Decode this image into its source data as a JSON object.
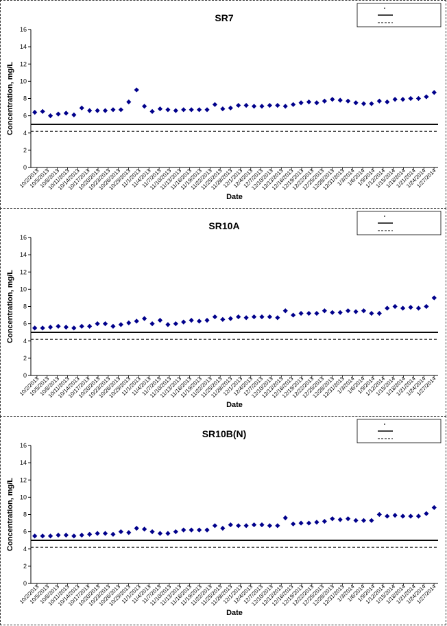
{
  "chart_data": [
    {
      "type": "scatter",
      "title": "SR7",
      "xlabel": "Date",
      "ylabel": "Concentration, mg/L",
      "ylim": [
        0,
        16
      ],
      "yticks": [
        0,
        2,
        4,
        6,
        8,
        10,
        12,
        14,
        16
      ],
      "x_tick_labels": [
        "10/2/2013",
        "10/5/2013",
        "10/8/2013",
        "10/11/2013",
        "10/14/2013",
        "10/17/2013",
        "10/20/2013",
        "10/23/2013",
        "10/26/2013",
        "10/29/2013",
        "11/1/2013",
        "11/4/2013",
        "11/7/2013",
        "11/10/2013",
        "11/13/2013",
        "11/16/2013",
        "11/19/2013",
        "11/22/2013",
        "11/25/2013",
        "11/28/2013",
        "12/1/2013",
        "12/4/2013",
        "12/7/2013",
        "12/10/2013",
        "12/13/2013",
        "12/16/2013",
        "12/19/2013",
        "12/22/2013",
        "12/25/2013",
        "12/28/2013",
        "12/31/2013",
        "1/3/2014",
        "1/6/2014",
        "1/9/2014",
        "1/12/2014",
        "1/15/2014",
        "1/18/2014",
        "1/21/2014",
        "1/24/2014",
        "1/27/2014"
      ],
      "series": [
        {
          "marker": "diamond",
          "color": "#00008b",
          "values": [
            6.4,
            6.5,
            6.0,
            6.2,
            6.3,
            6.1,
            6.9,
            6.6,
            6.6,
            6.6,
            6.7,
            6.7,
            7.6,
            9.0,
            7.1,
            6.5,
            6.8,
            6.7,
            6.6,
            6.7,
            6.7,
            6.7,
            6.7,
            7.3,
            6.8,
            6.9,
            7.2,
            7.2,
            7.1,
            7.1,
            7.2,
            7.2,
            7.1,
            7.3,
            7.5,
            7.6,
            7.5,
            7.7,
            7.9,
            7.8,
            7.7,
            7.5,
            7.4,
            7.4,
            7.7,
            7.6,
            7.9,
            7.9,
            8.0,
            8.0,
            8.2,
            8.7
          ]
        },
        {
          "line_style": "solid",
          "constant": 5.0
        },
        {
          "line_style": "dashed",
          "constant": 4.2
        }
      ]
    },
    {
      "type": "scatter",
      "title": "SR10A",
      "xlabel": "Date",
      "ylabel": "Concentration, mg/L",
      "ylim": [
        0,
        16
      ],
      "yticks": [
        0,
        2,
        4,
        6,
        8,
        10,
        12,
        14,
        16
      ],
      "x_tick_labels": [
        "10/2/2013",
        "10/5/2013",
        "10/8/2013",
        "10/11/2013",
        "10/14/2013",
        "10/17/2013",
        "10/20/2013",
        "10/23/2013",
        "10/26/2013",
        "10/29/2013",
        "11/1/2013",
        "11/4/2013",
        "11/7/2013",
        "11/10/2013",
        "11/13/2013",
        "11/16/2013",
        "11/19/2013",
        "11/22/2013",
        "11/25/2013",
        "11/28/2013",
        "12/1/2013",
        "12/4/2013",
        "12/7/2013",
        "12/10/2013",
        "12/13/2013",
        "12/16/2013",
        "12/19/2013",
        "12/22/2013",
        "12/25/2013",
        "12/28/2013",
        "12/31/2013",
        "1/3/2014",
        "1/6/2014",
        "1/9/2014",
        "1/12/2014",
        "1/15/2014",
        "1/18/2014",
        "1/21/2014",
        "1/24/2014",
        "1/27/2014"
      ],
      "series": [
        {
          "marker": "diamond",
          "color": "#00008b",
          "values": [
            5.5,
            5.5,
            5.6,
            5.7,
            5.6,
            5.5,
            5.7,
            5.7,
            6.0,
            6.0,
            5.7,
            5.9,
            6.1,
            6.3,
            6.6,
            6.0,
            6.4,
            5.9,
            6.0,
            6.2,
            6.4,
            6.3,
            6.4,
            6.8,
            6.5,
            6.6,
            6.8,
            6.7,
            6.8,
            6.8,
            6.8,
            6.7,
            7.5,
            7.0,
            7.2,
            7.2,
            7.2,
            7.5,
            7.3,
            7.3,
            7.5,
            7.4,
            7.5,
            7.2,
            7.2,
            7.8,
            8.0,
            7.8,
            7.9,
            7.8,
            8.0,
            9.0
          ]
        },
        {
          "line_style": "solid",
          "constant": 5.0
        },
        {
          "line_style": "dashed",
          "constant": 4.2
        }
      ]
    },
    {
      "type": "scatter",
      "title": "SR10B(N)",
      "xlabel": "Date",
      "ylabel": "Concentration, mg/L",
      "ylim": [
        0,
        16
      ],
      "yticks": [
        0,
        2,
        4,
        6,
        8,
        10,
        12,
        14,
        16
      ],
      "x_tick_labels": [
        "10/2/2013",
        "10/5/2013",
        "10/8/2013",
        "10/11/2013",
        "10/14/2013",
        "10/17/2013",
        "10/20/2013",
        "10/23/2013",
        "10/26/2013",
        "10/29/2013",
        "11/1/2013",
        "11/4/2013",
        "11/7/2013",
        "11/10/2013",
        "11/13/2013",
        "11/16/2013",
        "11/19/2013",
        "11/22/2013",
        "11/25/2013",
        "11/28/2013",
        "12/1/2013",
        "12/4/2013",
        "12/7/2013",
        "12/10/2013",
        "12/13/2013",
        "12/16/2013",
        "12/19/2013",
        "12/22/2013",
        "12/25/2013",
        "12/28/2013",
        "12/31/2013",
        "1/3/2014",
        "1/6/2014",
        "1/9/2014",
        "1/12/2014",
        "1/15/2014",
        "1/18/2014",
        "1/21/2014",
        "1/24/2014",
        "1/27/2014"
      ],
      "series": [
        {
          "marker": "diamond",
          "color": "#00008b",
          "values": [
            5.5,
            5.5,
            5.5,
            5.6,
            5.6,
            5.5,
            5.6,
            5.7,
            5.8,
            5.8,
            5.7,
            6.0,
            5.9,
            6.4,
            6.3,
            6.0,
            5.8,
            5.8,
            6.0,
            6.2,
            6.2,
            6.2,
            6.2,
            6.7,
            6.4,
            6.8,
            6.7,
            6.7,
            6.8,
            6.8,
            6.7,
            6.7,
            7.6,
            6.9,
            7.0,
            7.0,
            7.1,
            7.2,
            7.5,
            7.4,
            7.5,
            7.3,
            7.3,
            7.3,
            8.0,
            7.8,
            7.9,
            7.8,
            7.8,
            7.8,
            8.1,
            8.8
          ]
        },
        {
          "line_style": "solid",
          "constant": 5.0
        },
        {
          "line_style": "dashed",
          "constant": 4.2
        }
      ]
    }
  ]
}
